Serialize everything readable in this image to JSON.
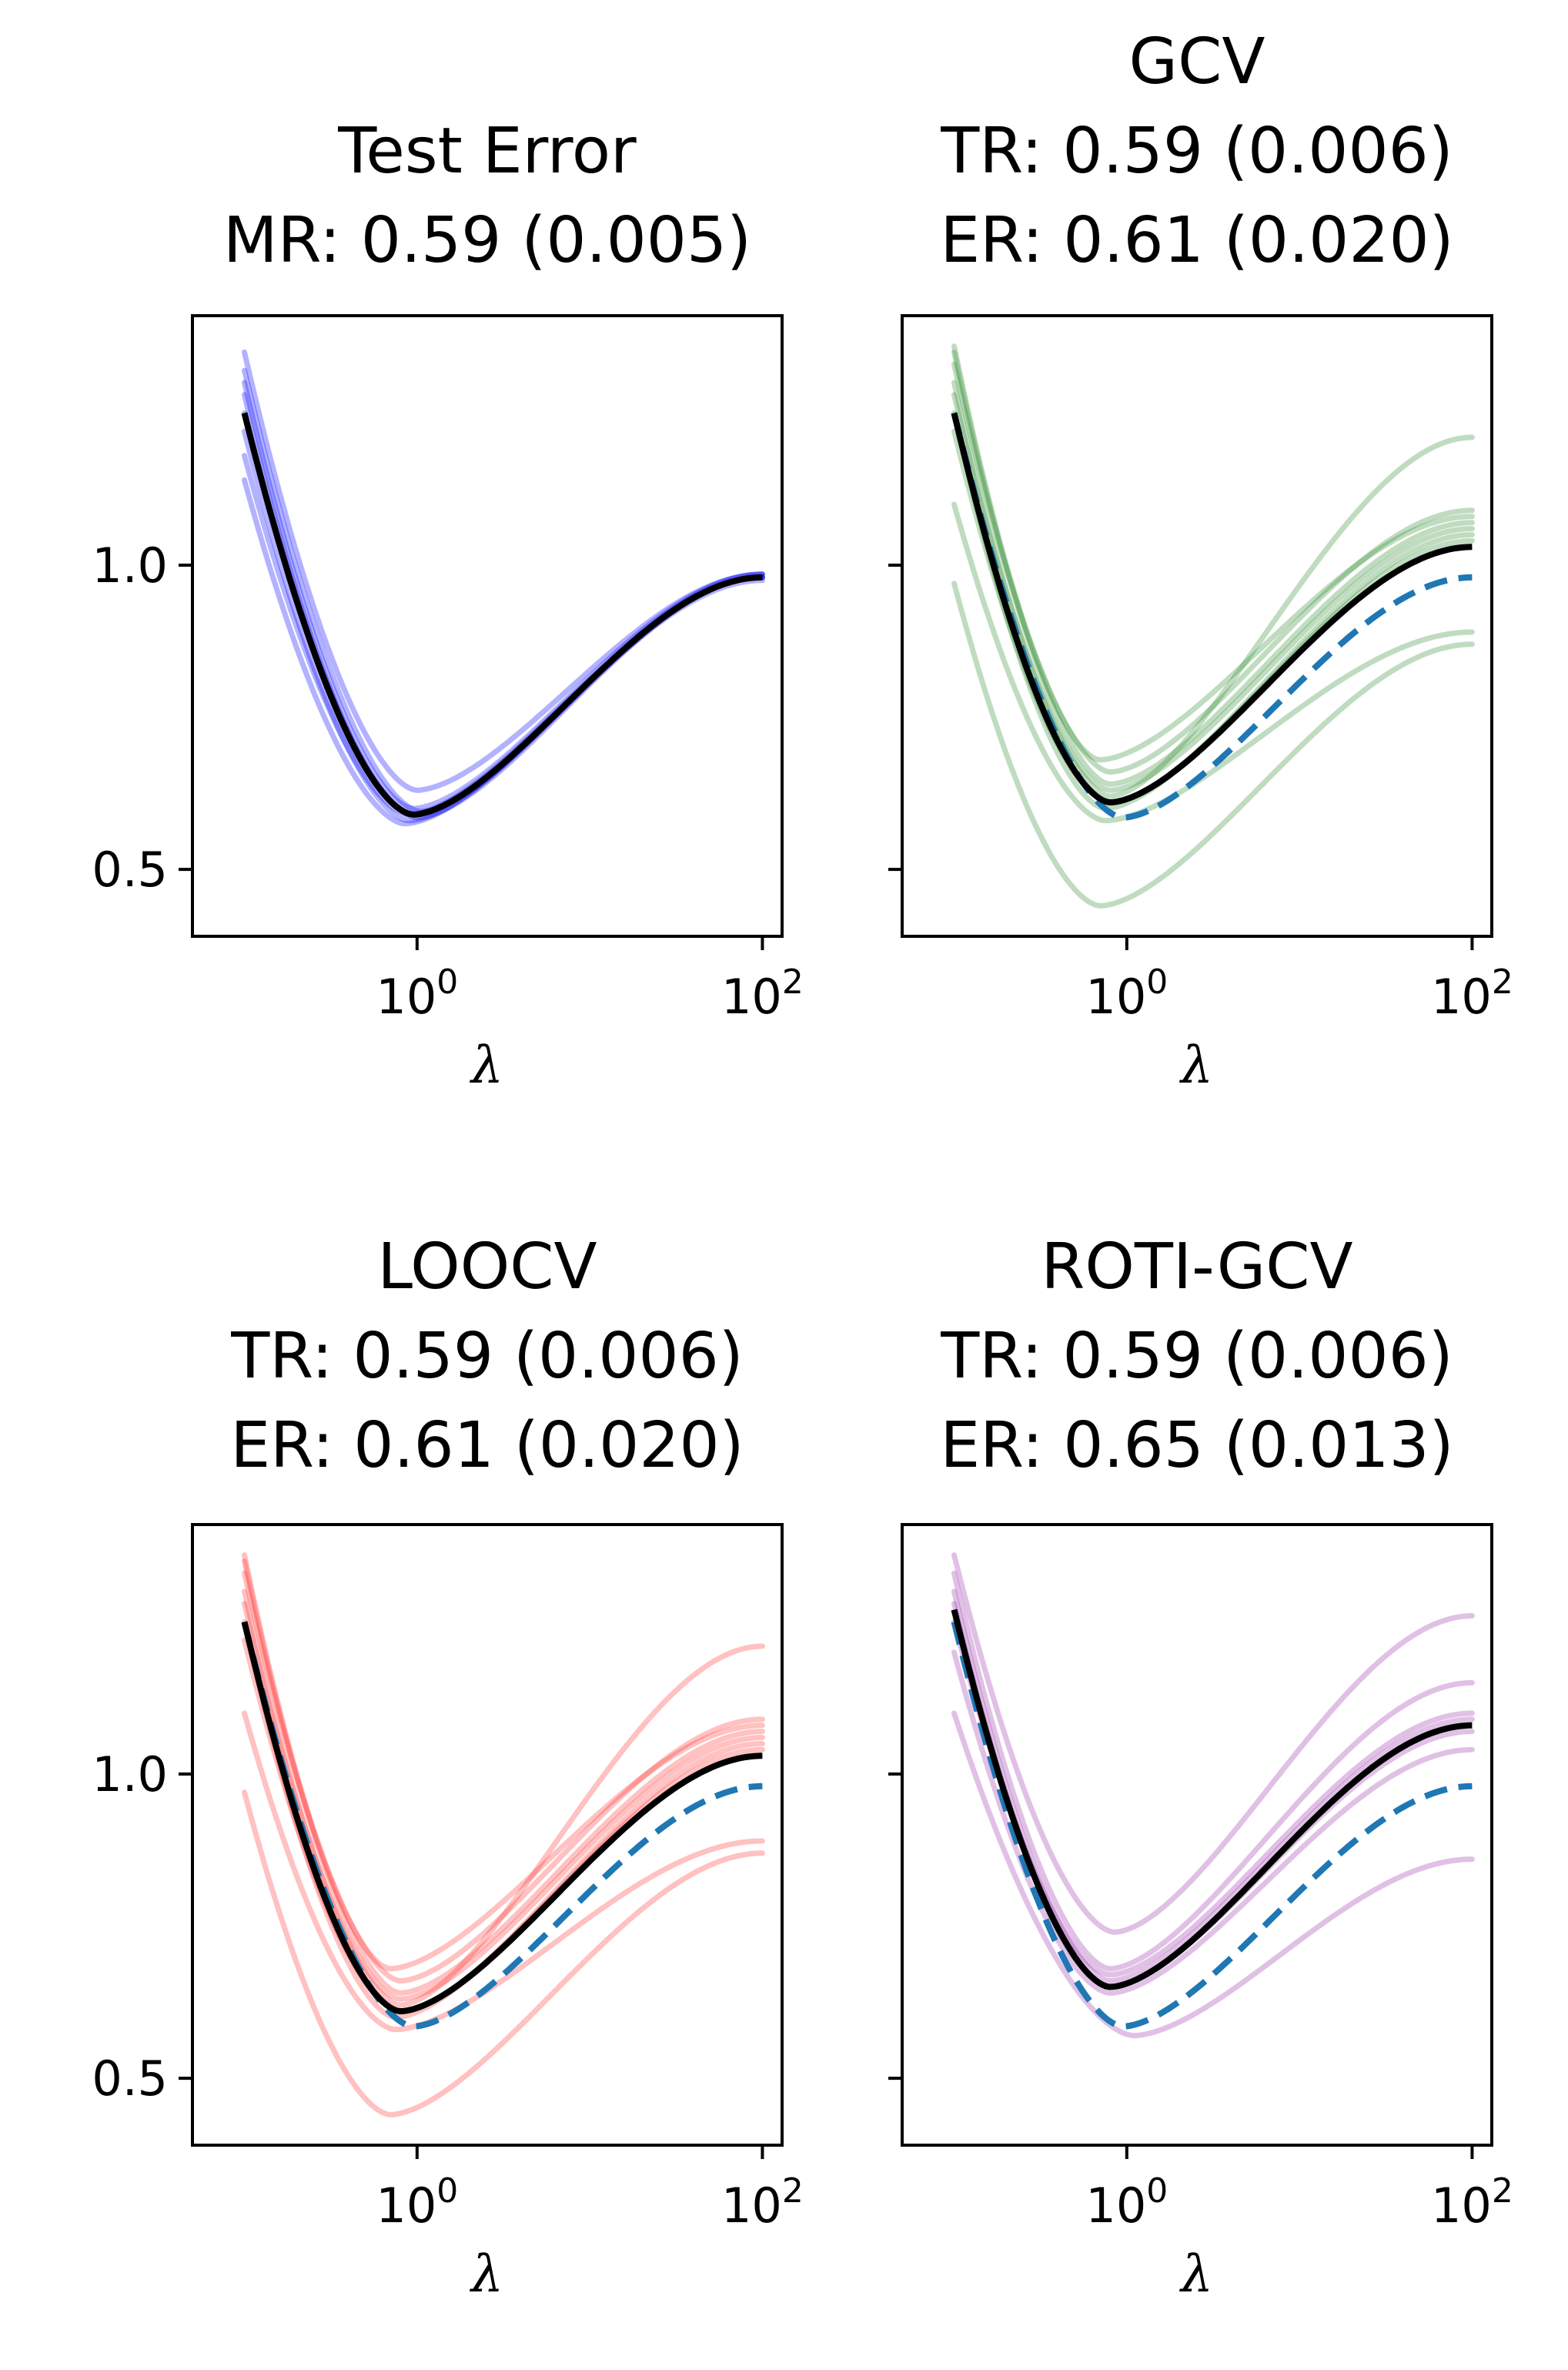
{
  "chart_data": [
    {
      "type": "line",
      "title_lines": [
        "Test Error",
        "MR: 0.59 (0.005)"
      ],
      "xlabel": "λ",
      "ylabel": "",
      "x_scale": "log",
      "x_ticks": [
        {
          "value": 1,
          "base": "10",
          "exp": "0"
        },
        {
          "value": 100,
          "base": "10",
          "exp": "2"
        }
      ],
      "y_ticks": [
        0.5,
        1.0
      ],
      "y_tick_labels": [
        "0.5",
        "1.0"
      ],
      "ylim": [
        0.39,
        1.41
      ],
      "xlim": [
        0.05,
        130
      ],
      "trial_color": "#0000ff",
      "trial_curves": [
        {
          "lam_min": 0.95,
          "min": 0.59,
          "start": 1.28,
          "end": 0.98
        },
        {
          "lam_min": 0.9,
          "min": 0.58,
          "start": 1.22,
          "end": 0.98
        },
        {
          "lam_min": 0.95,
          "min": 0.6,
          "start": 1.3,
          "end": 0.985
        },
        {
          "lam_min": 1.0,
          "min": 0.585,
          "start": 1.25,
          "end": 0.98
        },
        {
          "lam_min": 0.85,
          "min": 0.575,
          "start": 1.14,
          "end": 0.975
        },
        {
          "lam_min": 1.05,
          "min": 0.595,
          "start": 1.32,
          "end": 0.985
        },
        {
          "lam_min": 1.0,
          "min": 0.63,
          "start": 1.35,
          "end": 0.985
        },
        {
          "lam_min": 0.9,
          "min": 0.59,
          "start": 1.18,
          "end": 0.98
        }
      ],
      "mean_curve": {
        "name": "mean",
        "color": "#000000",
        "lam_min": 0.95,
        "min": 0.59,
        "start": 1.25,
        "end": 0.98
      },
      "reference_curve": null
    },
    {
      "type": "line",
      "title_lines": [
        "GCV",
        "TR: 0.59 (0.006)",
        "ER: 0.61 (0.020)"
      ],
      "xlabel": "λ",
      "ylabel": "",
      "x_scale": "log",
      "x_ticks": [
        {
          "value": 1,
          "base": "10",
          "exp": "0"
        },
        {
          "value": 100,
          "base": "10",
          "exp": "2"
        }
      ],
      "y_ticks": [
        0.5,
        1.0
      ],
      "y_tick_labels": [
        "",
        ""
      ],
      "ylim": [
        0.39,
        1.41
      ],
      "xlim": [
        0.05,
        130
      ],
      "trial_color": "#2e8b2e",
      "trial_curves": [
        {
          "lam_min": 0.7,
          "min": 0.44,
          "start": 0.97,
          "end": 0.87
        },
        {
          "lam_min": 0.75,
          "min": 0.58,
          "start": 1.1,
          "end": 0.89
        },
        {
          "lam_min": 0.8,
          "min": 0.62,
          "start": 1.3,
          "end": 1.21
        },
        {
          "lam_min": 0.8,
          "min": 0.64,
          "start": 1.35,
          "end": 1.07
        },
        {
          "lam_min": 0.8,
          "min": 0.66,
          "start": 1.33,
          "end": 1.09
        },
        {
          "lam_min": 0.75,
          "min": 0.6,
          "start": 1.25,
          "end": 1.05
        },
        {
          "lam_min": 0.8,
          "min": 0.63,
          "start": 1.28,
          "end": 1.06
        },
        {
          "lam_min": 0.7,
          "min": 0.68,
          "start": 1.36,
          "end": 1.08
        },
        {
          "lam_min": 0.8,
          "min": 0.61,
          "start": 1.22,
          "end": 1.04
        }
      ],
      "mean_curve": {
        "name": "mean",
        "color": "#000000",
        "lam_min": 0.8,
        "min": 0.61,
        "start": 1.25,
        "end": 1.03
      },
      "reference_curve": {
        "name": "test error",
        "color": "#1f77b4",
        "style": "dashed",
        "lam_min": 0.95,
        "min": 0.585,
        "start": 1.25,
        "end": 0.98
      }
    },
    {
      "type": "line",
      "title_lines": [
        "LOOCV",
        "TR: 0.59 (0.006)",
        "ER: 0.61 (0.020)"
      ],
      "xlabel": "λ",
      "ylabel": "",
      "x_scale": "log",
      "x_ticks": [
        {
          "value": 1,
          "base": "10",
          "exp": "0"
        },
        {
          "value": 100,
          "base": "10",
          "exp": "2"
        }
      ],
      "y_ticks": [
        0.5,
        1.0
      ],
      "y_tick_labels": [
        "0.5",
        "1.0"
      ],
      "ylim": [
        0.39,
        1.41
      ],
      "xlim": [
        0.05,
        130
      ],
      "trial_color": "#ff3333",
      "trial_curves": [
        {
          "lam_min": 0.7,
          "min": 0.44,
          "start": 0.97,
          "end": 0.87
        },
        {
          "lam_min": 0.75,
          "min": 0.58,
          "start": 1.1,
          "end": 0.89
        },
        {
          "lam_min": 0.8,
          "min": 0.62,
          "start": 1.3,
          "end": 1.21
        },
        {
          "lam_min": 0.8,
          "min": 0.64,
          "start": 1.35,
          "end": 1.07
        },
        {
          "lam_min": 0.8,
          "min": 0.66,
          "start": 1.33,
          "end": 1.09
        },
        {
          "lam_min": 0.75,
          "min": 0.6,
          "start": 1.25,
          "end": 1.05
        },
        {
          "lam_min": 0.8,
          "min": 0.63,
          "start": 1.28,
          "end": 1.06
        },
        {
          "lam_min": 0.7,
          "min": 0.68,
          "start": 1.36,
          "end": 1.08
        },
        {
          "lam_min": 0.8,
          "min": 0.61,
          "start": 1.22,
          "end": 1.04
        }
      ],
      "mean_curve": {
        "name": "mean",
        "color": "#000000",
        "lam_min": 0.8,
        "min": 0.61,
        "start": 1.25,
        "end": 1.03
      },
      "reference_curve": {
        "name": "test error",
        "color": "#1f77b4",
        "style": "dashed",
        "lam_min": 0.95,
        "min": 0.585,
        "start": 1.25,
        "end": 0.98
      }
    },
    {
      "type": "line",
      "title_lines": [
        "ROTI-GCV",
        "TR: 0.59 (0.006)",
        "ER: 0.65 (0.013)"
      ],
      "xlabel": "λ",
      "ylabel": "",
      "x_scale": "log",
      "x_ticks": [
        {
          "value": 1,
          "base": "10",
          "exp": "0"
        },
        {
          "value": 100,
          "base": "10",
          "exp": "2"
        }
      ],
      "y_ticks": [
        0.5,
        1.0
      ],
      "y_tick_labels": [
        "",
        ""
      ],
      "ylim": [
        0.39,
        1.41
      ],
      "xlim": [
        0.05,
        130
      ],
      "trial_color": "#9932a8",
      "trial_curves": [
        {
          "lam_min": 1.1,
          "min": 0.57,
          "start": 1.1,
          "end": 0.86
        },
        {
          "lam_min": 0.8,
          "min": 0.64,
          "start": 1.2,
          "end": 1.04
        },
        {
          "lam_min": 0.8,
          "min": 0.66,
          "start": 1.3,
          "end": 1.09
        },
        {
          "lam_min": 0.8,
          "min": 0.68,
          "start": 1.33,
          "end": 1.15
        },
        {
          "lam_min": 0.85,
          "min": 0.74,
          "start": 1.36,
          "end": 1.26
        },
        {
          "lam_min": 0.8,
          "min": 0.65,
          "start": 1.28,
          "end": 1.07
        },
        {
          "lam_min": 0.8,
          "min": 0.67,
          "start": 1.25,
          "end": 1.1
        }
      ],
      "mean_curve": {
        "name": "mean",
        "color": "#000000",
        "lam_min": 0.8,
        "min": 0.65,
        "start": 1.27,
        "end": 1.08
      },
      "reference_curve": {
        "name": "test error",
        "color": "#1f77b4",
        "style": "dashed",
        "lam_min": 0.95,
        "min": 0.585,
        "start": 1.25,
        "end": 0.98
      }
    }
  ]
}
